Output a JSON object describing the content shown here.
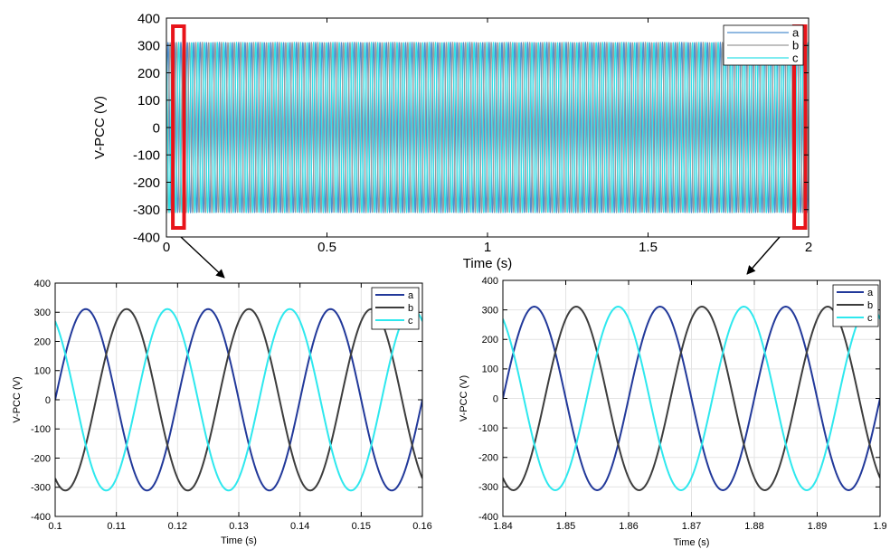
{
  "chart_data": [
    {
      "type": "line",
      "title": "",
      "xlabel": "Time (s)",
      "ylabel": "V-PCC (V)",
      "xlim": [
        0,
        2
      ],
      "ylim": [
        -400,
        400
      ],
      "xticks": [
        "0",
        "0.5",
        "1",
        "1.5",
        "2"
      ],
      "yticks": [
        "400",
        "300",
        "200",
        "100",
        "0",
        "-100",
        "-200",
        "-300",
        "-400"
      ],
      "grid": false,
      "legend_position": "top-right",
      "frequency_hz": 50,
      "amplitude_v": 311,
      "series": [
        {
          "name": "a",
          "color": "#4f8fcf",
          "phase_deg": 0
        },
        {
          "name": "b",
          "color": "#9a9a9a",
          "phase_deg": -120
        },
        {
          "name": "c",
          "color": "#33e0e6",
          "phase_deg": 120
        }
      ],
      "highlight_windows": [
        [
          0.02,
          0.055
        ],
        [
          1.955,
          1.99
        ]
      ],
      "highlight_color": "#e8141a"
    },
    {
      "type": "line",
      "title": "",
      "xlabel": "Time (s)",
      "ylabel": "V-PCC (V)",
      "xlim": [
        0.1,
        0.16
      ],
      "ylim": [
        -400,
        400
      ],
      "xticks": [
        "0.1",
        "0.11",
        "0.12",
        "0.13",
        "0.14",
        "0.15",
        "0.16"
      ],
      "yticks": [
        "400",
        "300",
        "200",
        "100",
        "0",
        "-100",
        "-200",
        "-300",
        "-400"
      ],
      "grid": true,
      "legend_position": "top-right",
      "frequency_hz": 50,
      "amplitude_v": 311,
      "series": [
        {
          "name": "a",
          "color": "#22399a",
          "phase_deg": 0
        },
        {
          "name": "b",
          "color": "#3d3d3d",
          "phase_deg": -120
        },
        {
          "name": "c",
          "color": "#2ee8ee",
          "phase_deg": 120
        }
      ]
    },
    {
      "type": "line",
      "title": "",
      "xlabel": "Time (s)",
      "ylabel": "V-PCC (V)",
      "xlim": [
        1.84,
        1.9
      ],
      "ylim": [
        -400,
        400
      ],
      "xticks": [
        "1.84",
        "1.85",
        "1.86",
        "1.87",
        "1.88",
        "1.89",
        "1.9"
      ],
      "yticks": [
        "400",
        "300",
        "200",
        "100",
        "0",
        "-100",
        "-200",
        "-300",
        "-400"
      ],
      "grid": true,
      "legend_position": "top-right",
      "frequency_hz": 50,
      "amplitude_v": 311,
      "series": [
        {
          "name": "a",
          "color": "#22399a",
          "phase_deg": 0
        },
        {
          "name": "b",
          "color": "#3d3d3d",
          "phase_deg": -120
        },
        {
          "name": "c",
          "color": "#2ee8ee",
          "phase_deg": 120
        }
      ]
    }
  ]
}
